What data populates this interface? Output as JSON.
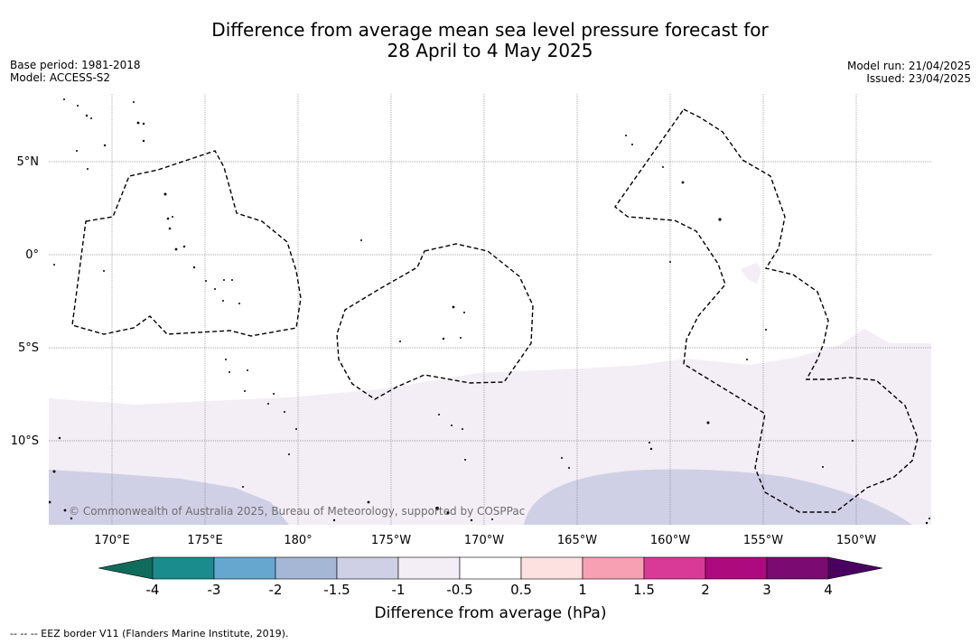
{
  "title_line1": "Difference from average mean sea level pressure forecast for",
  "title_line2": "28 April to 4 May 2025",
  "base_period": "Base period: 1981-2018",
  "model": "Model: ACCESS-S2",
  "model_run": "Model run: 21/04/2025",
  "issued": "Issued: 23/04/2025",
  "lat_labels": [
    "5°N",
    "0°",
    "5°S",
    "10°S"
  ],
  "lon_labels": [
    "170°E",
    "175°E",
    "180°",
    "175°W",
    "170°W",
    "165°W",
    "160°W",
    "155°W",
    "150°W"
  ],
  "copyright": "© Commonwealth of Australia 2025, Bureau of Meteorology, supported by COSPPac",
  "colorbar": {
    "ticks": [
      "-4",
      "-3",
      "-2",
      "-1.5",
      "-1",
      "-0.5",
      "0.5",
      "1",
      "1.5",
      "2",
      "3",
      "4"
    ],
    "label": "Difference from average (hPa)",
    "colors": [
      "#1a8c8e",
      "#66a7d0",
      "#a6b7d6",
      "#cfcfe6",
      "#f3edf6",
      "#ffffff",
      "#fde0e0",
      "#f7a0b4",
      "#d93a98",
      "#ad0a7d",
      "#7b0a73"
    ],
    "low_extend_color": "#106c5a",
    "high_extend_color": "#4a0060"
  },
  "footer": "--  --  -- EEZ border V11 (Flanders Marine Institute, 2019)."
}
